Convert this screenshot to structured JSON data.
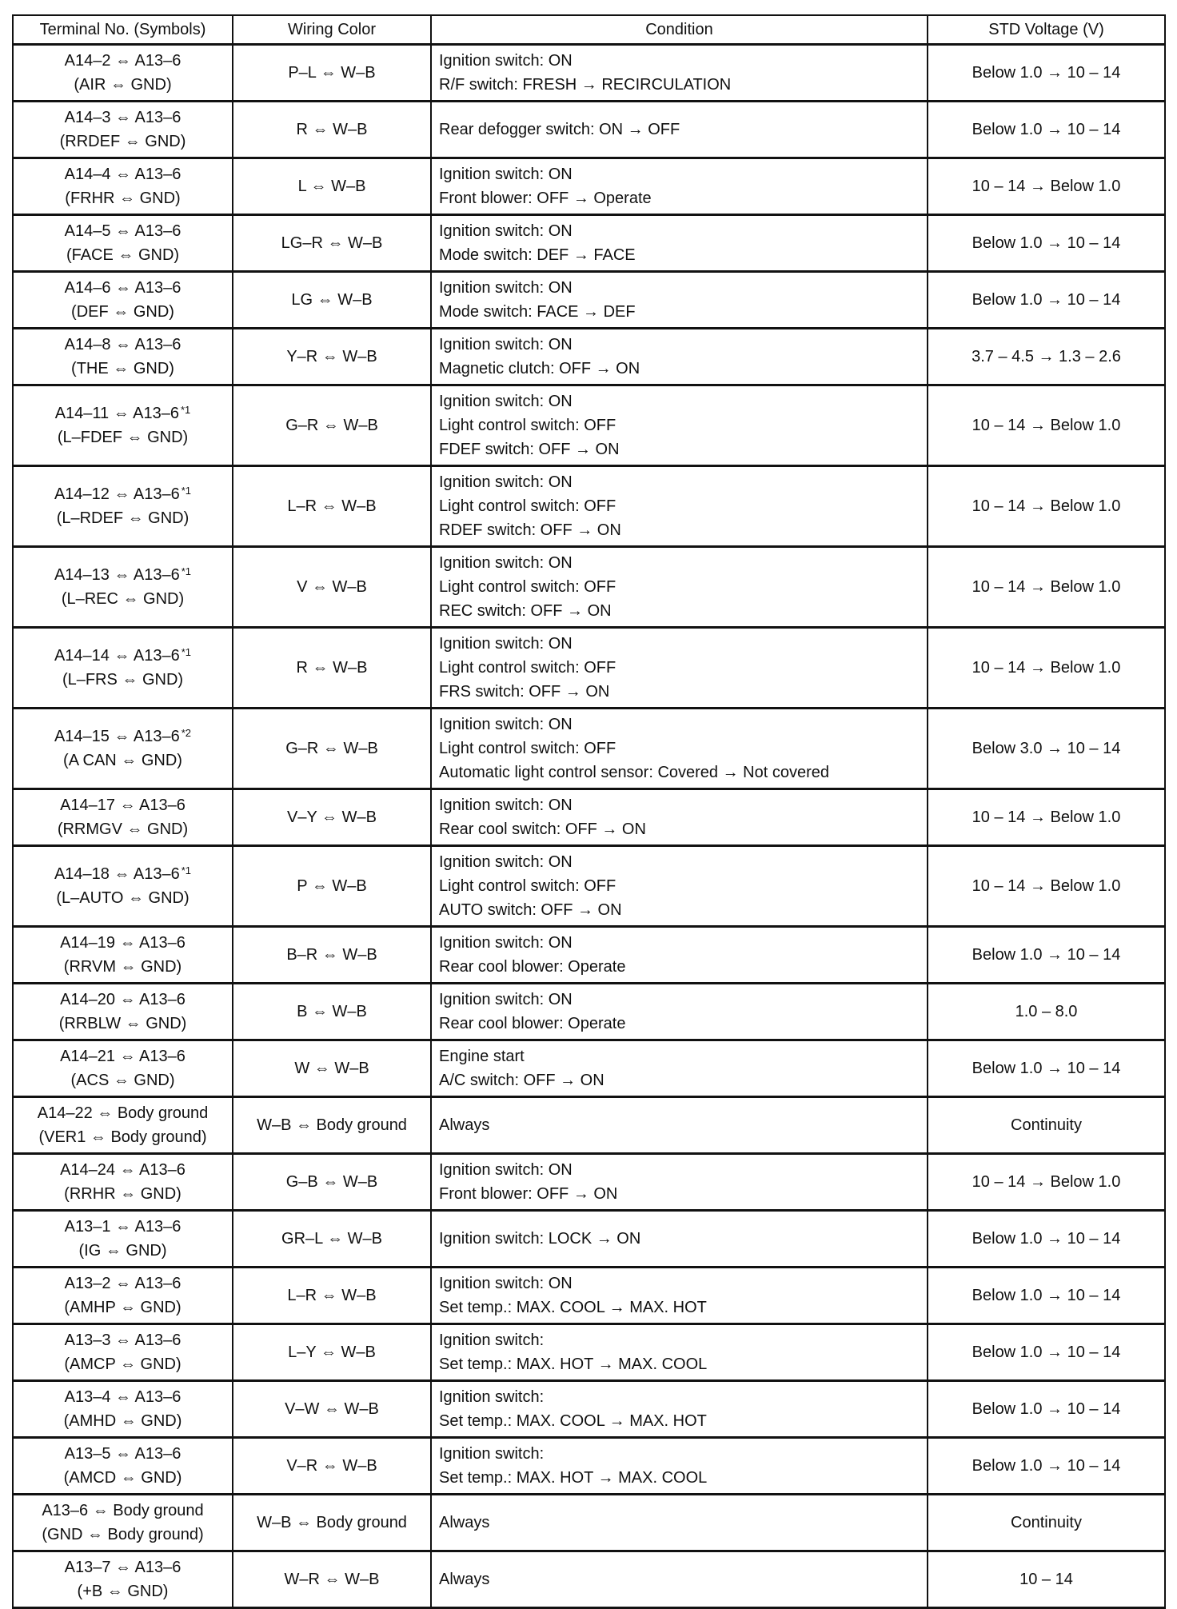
{
  "headers": [
    "Terminal No. (Symbols)",
    "Wiring Color",
    "Condition",
    "STD Voltage (V)"
  ],
  "rows": [
    {
      "terminal": "A14–2 ⇔ A13–6",
      "note": "",
      "symbols": "(AIR ⇔ GND)",
      "wiring": "P–L ⇔ W–B",
      "conditions": [
        "Ignition switch: ON",
        "R/F switch: FRESH → RECIRCULATION"
      ],
      "voltage": "Below 1.0 → 10 – 14"
    },
    {
      "terminal": "A14–3 ⇔ A13–6",
      "note": "",
      "symbols": "(RRDEF ⇔ GND)",
      "wiring": "R ⇔ W–B",
      "conditions": [
        "Rear defogger switch: ON → OFF"
      ],
      "voltage": "Below 1.0 → 10 – 14"
    },
    {
      "terminal": "A14–4 ⇔ A13–6",
      "note": "",
      "symbols": "(FRHR ⇔ GND)",
      "wiring": "L ⇔ W–B",
      "conditions": [
        "Ignition switch: ON",
        "Front blower: OFF → Operate"
      ],
      "voltage": "10 – 14 → Below 1.0"
    },
    {
      "terminal": "A14–5 ⇔ A13–6",
      "note": "",
      "symbols": "(FACE ⇔ GND)",
      "wiring": "LG–R ⇔ W–B",
      "conditions": [
        "Ignition switch: ON",
        "Mode switch: DEF → FACE"
      ],
      "voltage": "Below 1.0 → 10 – 14"
    },
    {
      "terminal": "A14–6 ⇔ A13–6",
      "note": "",
      "symbols": "(DEF ⇔ GND)",
      "wiring": "LG ⇔ W–B",
      "conditions": [
        "Ignition switch: ON",
        "Mode switch: FACE → DEF"
      ],
      "voltage": "Below 1.0 → 10 – 14"
    },
    {
      "terminal": "A14–8 ⇔ A13–6",
      "note": "",
      "symbols": "(THE ⇔ GND)",
      "wiring": "Y–R ⇔ W–B",
      "conditions": [
        "Ignition switch: ON",
        "Magnetic clutch: OFF → ON"
      ],
      "voltage": "3.7 – 4.5 → 1.3 – 2.6"
    },
    {
      "terminal": "A14–11 ⇔ A13–6",
      "note": "*1",
      "symbols": "(L–FDEF ⇔ GND)",
      "wiring": "G–R ⇔ W–B",
      "conditions": [
        "Ignition switch: ON",
        "Light control switch: OFF",
        "FDEF switch: OFF → ON"
      ],
      "voltage": "10 – 14 → Below 1.0"
    },
    {
      "terminal": "A14–12 ⇔ A13–6",
      "note": "*1",
      "symbols": "(L–RDEF ⇔ GND)",
      "wiring": "L–R ⇔ W–B",
      "conditions": [
        "Ignition switch: ON",
        "Light control switch: OFF",
        "RDEF switch: OFF → ON"
      ],
      "voltage": "10 – 14 → Below 1.0"
    },
    {
      "terminal": "A14–13 ⇔ A13–6",
      "note": "*1",
      "symbols": "(L–REC ⇔ GND)",
      "wiring": "V ⇔ W–B",
      "conditions": [
        "Ignition switch: ON",
        "Light control switch: OFF",
        "REC switch: OFF → ON"
      ],
      "voltage": "10 – 14 → Below 1.0"
    },
    {
      "terminal": "A14–14 ⇔ A13–6",
      "note": "*1",
      "symbols": "(L–FRS ⇔ GND)",
      "wiring": "R ⇔ W–B",
      "conditions": [
        "Ignition switch: ON",
        "Light control switch: OFF",
        "FRS switch: OFF → ON"
      ],
      "voltage": "10 – 14 → Below 1.0"
    },
    {
      "terminal": "A14–15 ⇔ A13–6",
      "note": "*2",
      "symbols": "(A CAN ⇔ GND)",
      "wiring": "G–R ⇔ W–B",
      "conditions": [
        "Ignition switch: ON",
        "Light control switch: OFF",
        "Automatic light control sensor: Covered → Not covered"
      ],
      "voltage": "Below 3.0 → 10 – 14"
    },
    {
      "terminal": "A14–17 ⇔ A13–6",
      "note": "",
      "symbols": "(RRMGV ⇔ GND)",
      "wiring": "V–Y ⇔ W–B",
      "conditions": [
        "Ignition switch: ON",
        "Rear cool switch: OFF → ON"
      ],
      "voltage": "10 – 14 → Below 1.0"
    },
    {
      "terminal": "A14–18 ⇔ A13–6",
      "note": "*1",
      "symbols": "(L–AUTO ⇔ GND)",
      "wiring": "P ⇔ W–B",
      "conditions": [
        "Ignition switch: ON",
        "Light control switch: OFF",
        "AUTO switch: OFF → ON"
      ],
      "voltage": "10 – 14 → Below 1.0"
    },
    {
      "terminal": "A14–19 ⇔ A13–6",
      "note": "",
      "symbols": "(RRVM ⇔ GND)",
      "wiring": "B–R ⇔ W–B",
      "conditions": [
        "Ignition switch: ON",
        "Rear cool blower: Operate"
      ],
      "voltage": "Below 1.0 → 10 – 14"
    },
    {
      "terminal": "A14–20 ⇔ A13–6",
      "note": "",
      "symbols": "(RRBLW ⇔ GND)",
      "wiring": "B ⇔ W–B",
      "conditions": [
        "Ignition switch: ON",
        "Rear cool blower: Operate"
      ],
      "voltage": "1.0 – 8.0"
    },
    {
      "terminal": "A14–21 ⇔ A13–6",
      "note": "",
      "symbols": "(ACS ⇔ GND)",
      "wiring": "W ⇔ W–B",
      "conditions": [
        "Engine start",
        "A/C switch: OFF → ON"
      ],
      "voltage": "Below 1.0 → 10 – 14"
    },
    {
      "terminal": "A14–22 ⇔ Body ground",
      "note": "",
      "symbols": "(VER1 ⇔ Body ground)",
      "wiring": "W–B ⇔ Body ground",
      "conditions": [
        "Always"
      ],
      "voltage": "Continuity"
    },
    {
      "terminal": "A14–24 ⇔ A13–6",
      "note": "",
      "symbols": "(RRHR ⇔ GND)",
      "wiring": "G–B ⇔ W–B",
      "conditions": [
        "Ignition switch: ON",
        "Front blower: OFF → ON"
      ],
      "voltage": "10 – 14 → Below 1.0"
    },
    {
      "terminal": "A13–1 ⇔ A13–6",
      "note": "",
      "symbols": "(IG ⇔ GND)",
      "wiring": "GR–L ⇔ W–B",
      "conditions": [
        "Ignition switch: LOCK → ON"
      ],
      "voltage": "Below 1.0 → 10 – 14"
    },
    {
      "terminal": "A13–2 ⇔ A13–6",
      "note": "",
      "symbols": "(AMHP ⇔ GND)",
      "wiring": "L–R ⇔ W–B",
      "conditions": [
        "Ignition switch: ON",
        "Set temp.: MAX. COOL → MAX. HOT"
      ],
      "voltage": "Below 1.0 → 10 – 14"
    },
    {
      "terminal": "A13–3 ⇔ A13–6",
      "note": "",
      "symbols": "(AMCP ⇔ GND)",
      "wiring": "L–Y ⇔ W–B",
      "conditions": [
        "Ignition switch:",
        "Set temp.: MAX. HOT → MAX. COOL"
      ],
      "voltage": "Below 1.0 → 10 – 14"
    },
    {
      "terminal": "A13–4 ⇔ A13–6",
      "note": "",
      "symbols": "(AMHD ⇔ GND)",
      "wiring": "V–W ⇔ W–B",
      "conditions": [
        "Ignition switch:",
        "Set temp.: MAX. COOL → MAX. HOT"
      ],
      "voltage": "Below 1.0 → 10 – 14"
    },
    {
      "terminal": "A13–5 ⇔ A13–6",
      "note": "",
      "symbols": "(AMCD ⇔ GND)",
      "wiring": "V–R ⇔ W–B",
      "conditions": [
        "Ignition switch:",
        "Set temp.: MAX. HOT → MAX. COOL"
      ],
      "voltage": "Below 1.0 → 10 – 14"
    },
    {
      "terminal": "A13–6 ⇔ Body ground",
      "note": "",
      "symbols": "(GND ⇔ Body ground)",
      "wiring": "W–B ⇔ Body ground",
      "conditions": [
        "Always"
      ],
      "voltage": "Continuity"
    },
    {
      "terminal": "A13–7 ⇔ A13–6",
      "note": "",
      "symbols": "(+B ⇔ GND)",
      "wiring": "W–R ⇔ W–B",
      "conditions": [
        "Always"
      ],
      "voltage": "10 – 14"
    }
  ]
}
